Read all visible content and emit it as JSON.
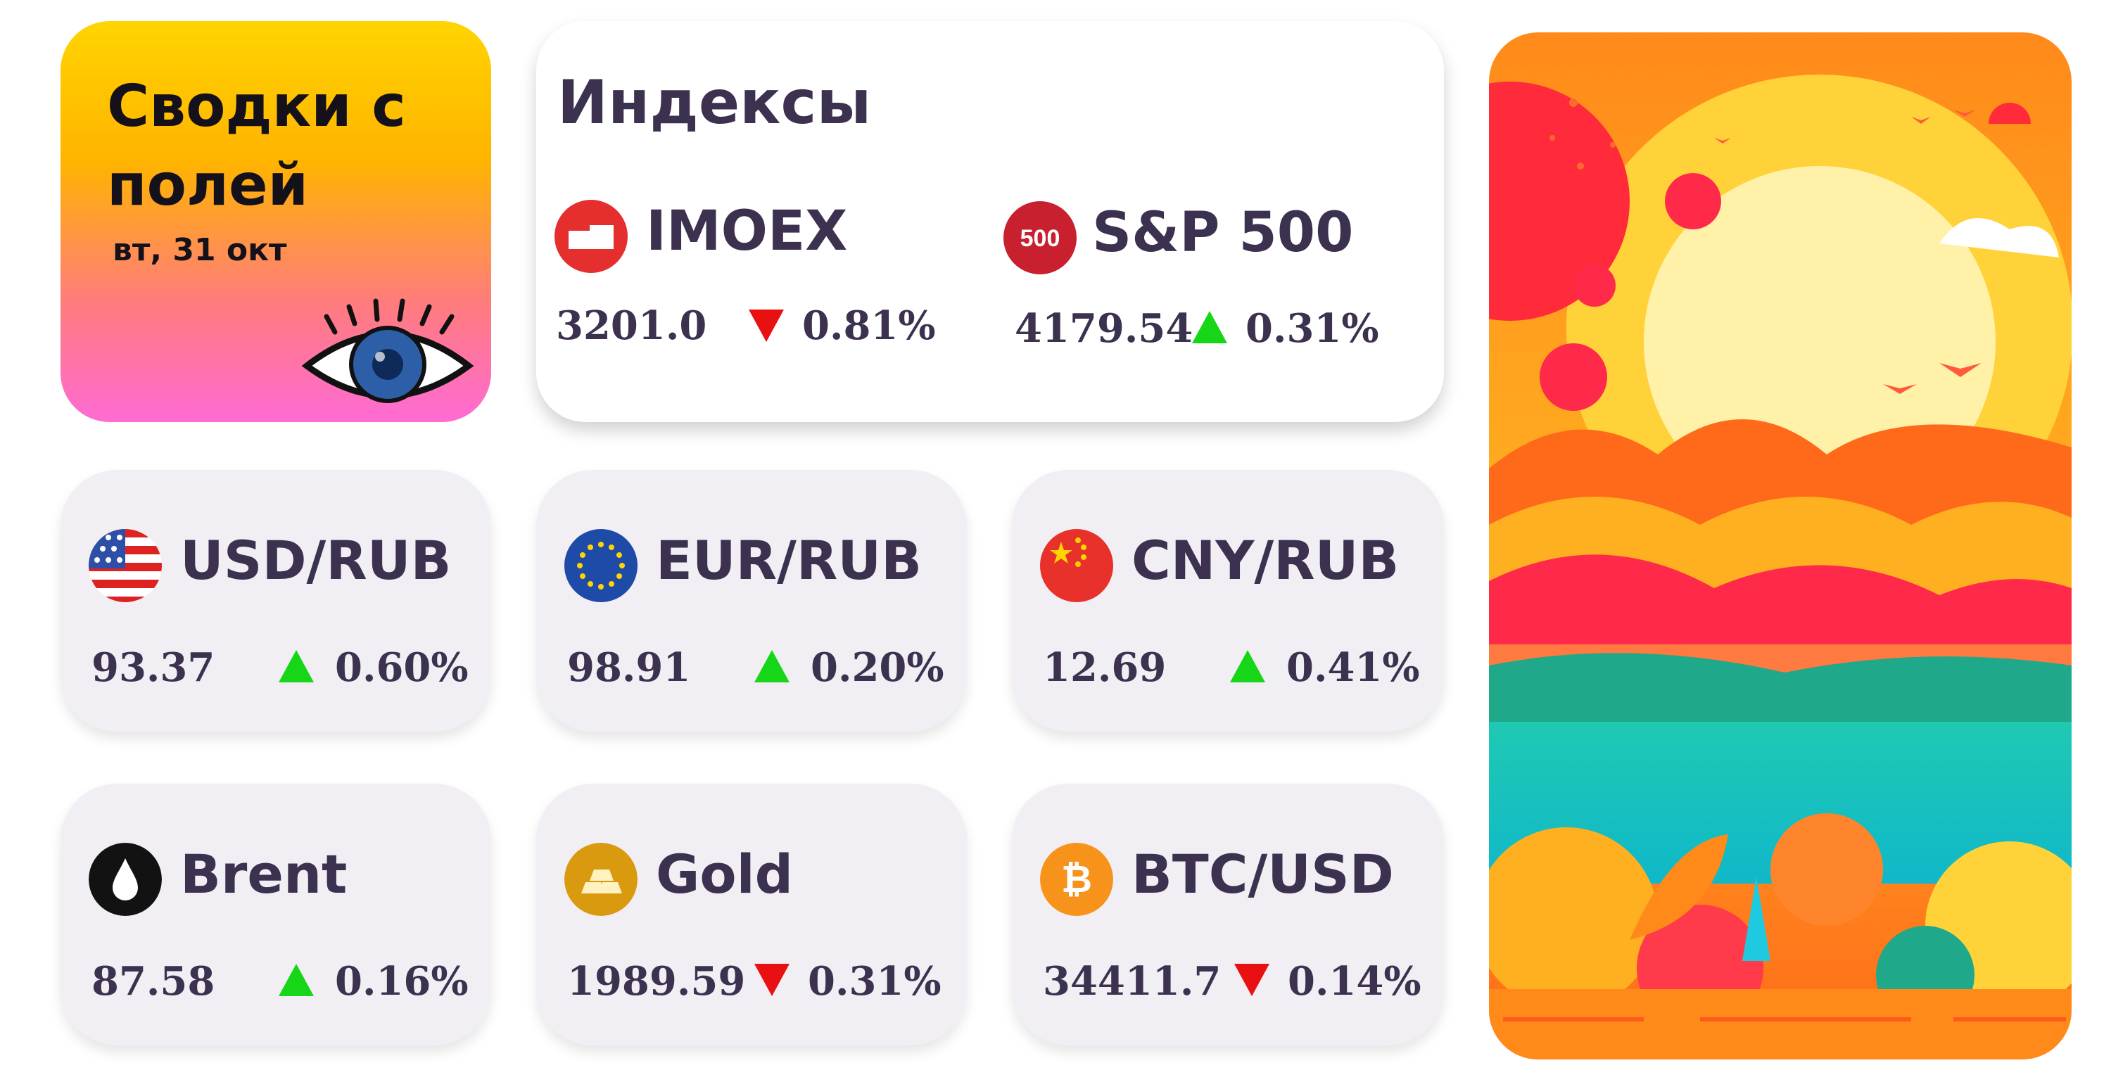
{
  "header": {
    "title": "Сводки с полей",
    "date": "вт, 31 окт"
  },
  "indices": {
    "title": "Индексы",
    "items": [
      {
        "name": "IMOEX",
        "value": "3201.0",
        "change": "0.81%",
        "direction": "down"
      },
      {
        "name": "S&P 500",
        "value": "4179.54",
        "change": "0.31%",
        "direction": "up",
        "badge": "500"
      }
    ]
  },
  "pairs": [
    {
      "name": "USD/RUB",
      "value": "93.37",
      "change": "0.60%",
      "direction": "up"
    },
    {
      "name": "EUR/RUB",
      "value": "98.91",
      "change": "0.20%",
      "direction": "up"
    },
    {
      "name": "CNY/RUB",
      "value": "12.69",
      "change": "0.41%",
      "direction": "up"
    },
    {
      "name": "Brent",
      "value": "87.58",
      "change": "0.16%",
      "direction": "up"
    },
    {
      "name": "Gold",
      "value": "1989.59",
      "change": "0.31%",
      "direction": "down"
    },
    {
      "name": "BTC/USD",
      "value": "34411.7",
      "change": "0.14%",
      "direction": "down"
    }
  ],
  "colors": {
    "up": "#17d617",
    "down": "#e81010",
    "text": "#3d3150"
  }
}
